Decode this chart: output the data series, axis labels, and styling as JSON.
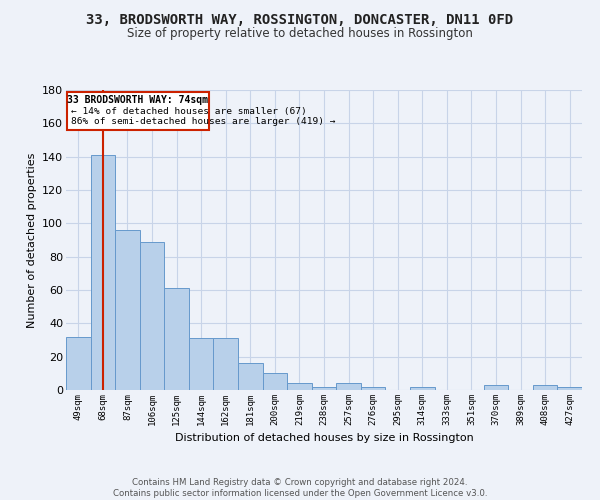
{
  "title": "33, BRODSWORTH WAY, ROSSINGTON, DONCASTER, DN11 0FD",
  "subtitle": "Size of property relative to detached houses in Rossington",
  "xlabel": "Distribution of detached houses by size in Rossington",
  "ylabel": "Number of detached properties",
  "categories": [
    "49sqm",
    "68sqm",
    "87sqm",
    "106sqm",
    "125sqm",
    "144sqm",
    "162sqm",
    "181sqm",
    "200sqm",
    "219sqm",
    "238sqm",
    "257sqm",
    "276sqm",
    "295sqm",
    "314sqm",
    "333sqm",
    "351sqm",
    "370sqm",
    "389sqm",
    "408sqm",
    "427sqm"
  ],
  "values": [
    32,
    141,
    96,
    89,
    61,
    31,
    31,
    16,
    10,
    4,
    2,
    4,
    2,
    0,
    2,
    0,
    0,
    3,
    0,
    3,
    2
  ],
  "bar_color": "#b8d0ea",
  "bar_edge_color": "#6699cc",
  "grid_color": "#c8d4e8",
  "background_color": "#eef2f9",
  "property_label": "33 BRODSWORTH WAY: 74sqm",
  "pct_smaller": 14,
  "num_smaller": 67,
  "pct_larger_semi": 86,
  "num_larger_semi": 419,
  "vline_bar_index": 1,
  "annotation_box_color": "#ffffff",
  "annotation_box_edge": "#cc2200",
  "vline_color": "#cc2200",
  "footer_text": "Contains HM Land Registry data © Crown copyright and database right 2024.\nContains public sector information licensed under the Open Government Licence v3.0.",
  "ylim": [
    0,
    180
  ],
  "yticks": [
    0,
    20,
    40,
    60,
    80,
    100,
    120,
    140,
    160,
    180
  ]
}
